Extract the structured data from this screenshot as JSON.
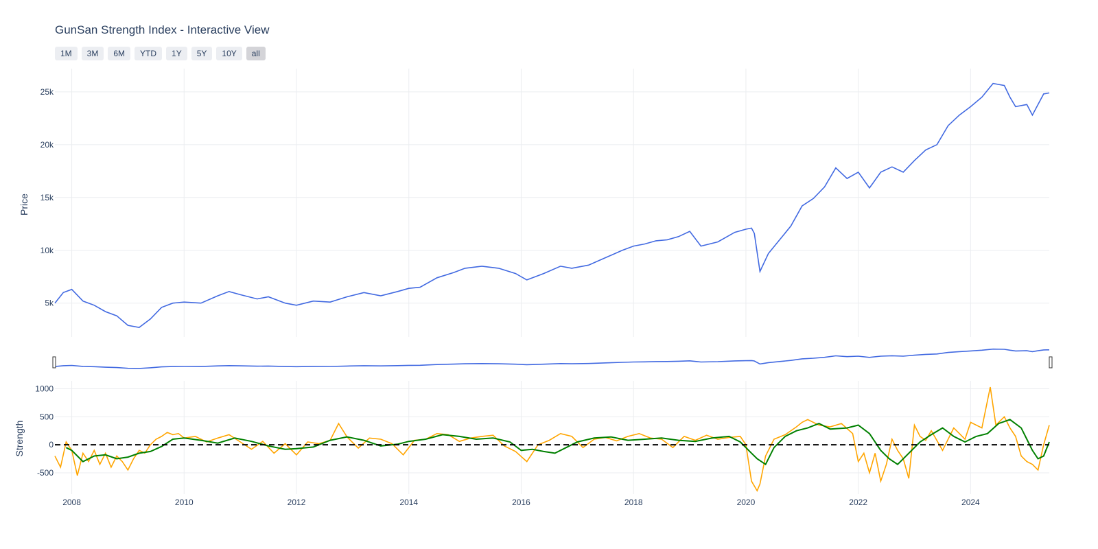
{
  "title": "GunSan Strength Index - Interactive View",
  "range_selector": {
    "buttons": [
      {
        "label": "1M",
        "active": false
      },
      {
        "label": "3M",
        "active": false
      },
      {
        "label": "6M",
        "active": false
      },
      {
        "label": "YTD",
        "active": false
      },
      {
        "label": "1Y",
        "active": false
      },
      {
        "label": "5Y",
        "active": false
      },
      {
        "label": "10Y",
        "active": false
      },
      {
        "label": "all",
        "active": true
      }
    ]
  },
  "colors": {
    "price": "#4169e1",
    "strength": "#ffa500",
    "strength_smooth": "#008000",
    "zero_line": "#000000",
    "grid": "#ebedf0",
    "text": "#2a3f5f"
  },
  "chart_data": [
    {
      "type": "line",
      "panel": "price",
      "ylabel": "Price",
      "ylim": [
        1800,
        27200
      ],
      "xlim": [
        2007.7,
        2025.4
      ],
      "y_ticks": [
        {
          "value": 5000,
          "label": "5k"
        },
        {
          "value": 10000,
          "label": "10k"
        },
        {
          "value": 15000,
          "label": "15k"
        },
        {
          "value": 20000,
          "label": "20k"
        },
        {
          "value": 25000,
          "label": "25k"
        }
      ],
      "x_ticks": [
        {
          "value": 2008,
          "label": "2008"
        },
        {
          "value": 2010,
          "label": "2010"
        },
        {
          "value": 2012,
          "label": "2012"
        },
        {
          "value": 2014,
          "label": "2014"
        },
        {
          "value": 2016,
          "label": "2016"
        },
        {
          "value": 2018,
          "label": "2018"
        },
        {
          "value": 2020,
          "label": "2020"
        },
        {
          "value": 2022,
          "label": "2022"
        },
        {
          "value": 2024,
          "label": "2024"
        }
      ],
      "grid": true,
      "series": [
        {
          "x": [
            2007.7,
            2007.85,
            2008.0,
            2008.2,
            2008.4,
            2008.6,
            2008.8,
            2009.0,
            2009.2,
            2009.4,
            2009.6,
            2009.8,
            2010.0,
            2010.3,
            2010.6,
            2010.8,
            2011.0,
            2011.3,
            2011.5,
            2011.8,
            2012.0,
            2012.3,
            2012.6,
            2012.9,
            2013.2,
            2013.5,
            2013.8,
            2014.0,
            2014.2,
            2014.5,
            2014.8,
            2015.0,
            2015.3,
            2015.6,
            2015.9,
            2016.1,
            2016.4,
            2016.7,
            2016.9,
            2017.2,
            2017.5,
            2017.8,
            2018.0,
            2018.2,
            2018.4,
            2018.6,
            2018.8,
            2019.0,
            2019.2,
            2019.5,
            2019.8,
            2020.0,
            2020.1,
            2020.15,
            2020.25,
            2020.4,
            2020.6,
            2020.8,
            2021.0,
            2021.2,
            2021.4,
            2021.6,
            2021.8,
            2022.0,
            2022.2,
            2022.4,
            2022.6,
            2022.8,
            2023.0,
            2023.2,
            2023.4,
            2023.6,
            2023.8,
            2024.0,
            2024.2,
            2024.4,
            2024.6,
            2024.7,
            2024.8,
            2025.0,
            2025.1,
            2025.2,
            2025.3,
            2025.4
          ],
          "y": [
            5000,
            6000,
            6300,
            5200,
            4800,
            4200,
            3800,
            2900,
            2700,
            3500,
            4600,
            5000,
            5100,
            5000,
            5700,
            6100,
            5800,
            5400,
            5600,
            5000,
            4800,
            5200,
            5100,
            5600,
            6000,
            5700,
            6100,
            6400,
            6500,
            7400,
            7900,
            8300,
            8500,
            8300,
            7800,
            7200,
            7800,
            8500,
            8300,
            8600,
            9300,
            10000,
            10400,
            10600,
            10900,
            11000,
            11300,
            11800,
            10400,
            10800,
            11700,
            12000,
            12100,
            11600,
            8000,
            9700,
            11000,
            12300,
            14200,
            14900,
            16000,
            17800,
            16800,
            17400,
            15900,
            17400,
            17900,
            17400,
            18500,
            19500,
            20000,
            21800,
            22800,
            23600,
            24500,
            25800,
            25600,
            24500,
            23600,
            23800,
            22800,
            23800,
            24800,
            24900
          ],
          "name": ""
        }
      ]
    },
    {
      "type": "line",
      "panel": "range_slider",
      "xlim": [
        2007.7,
        2025.4
      ],
      "series": [
        {
          "ref": "price"
        }
      ]
    },
    {
      "type": "line",
      "panel": "strength",
      "ylabel": "Strength",
      "ylim": [
        -880,
        1140
      ],
      "xlim": [
        2007.7,
        2025.4
      ],
      "y_ticks": [
        {
          "value": -500,
          "label": "-500"
        },
        {
          "value": 0,
          "label": "0"
        },
        {
          "value": 500,
          "label": "500"
        },
        {
          "value": 1000,
          "label": "1000"
        }
      ],
      "x_ticks": [
        {
          "value": 2008,
          "label": "2008"
        },
        {
          "value": 2010,
          "label": "2010"
        },
        {
          "value": 2012,
          "label": "2012"
        },
        {
          "value": 2014,
          "label": "2014"
        },
        {
          "value": 2016,
          "label": "2016"
        },
        {
          "value": 2018,
          "label": "2018"
        },
        {
          "value": 2020,
          "label": "2020"
        },
        {
          "value": 2022,
          "label": "2022"
        },
        {
          "value": 2024,
          "label": "2024"
        }
      ],
      "grid": true,
      "reference_line": {
        "y": 0,
        "style": "dashed"
      },
      "series": [
        {
          "name": "",
          "color_key": "strength",
          "x": [
            2007.7,
            2007.8,
            2007.9,
            2008.0,
            2008.1,
            2008.2,
            2008.3,
            2008.4,
            2008.5,
            2008.6,
            2008.7,
            2008.8,
            2008.9,
            2009.0,
            2009.1,
            2009.2,
            2009.3,
            2009.4,
            2009.5,
            2009.6,
            2009.7,
            2009.8,
            2009.9,
            2010.0,
            2010.2,
            2010.4,
            2010.6,
            2010.8,
            2011.0,
            2011.2,
            2011.4,
            2011.6,
            2011.8,
            2012.0,
            2012.2,
            2012.4,
            2012.6,
            2012.75,
            2012.9,
            2013.1,
            2013.3,
            2013.5,
            2013.7,
            2013.9,
            2014.1,
            2014.3,
            2014.5,
            2014.7,
            2014.9,
            2015.1,
            2015.3,
            2015.5,
            2015.7,
            2015.9,
            2016.1,
            2016.3,
            2016.5,
            2016.7,
            2016.9,
            2017.1,
            2017.3,
            2017.5,
            2017.7,
            2017.9,
            2018.1,
            2018.3,
            2018.5,
            2018.7,
            2018.9,
            2019.1,
            2019.3,
            2019.5,
            2019.7,
            2019.9,
            2020.0,
            2020.1,
            2020.2,
            2020.25,
            2020.35,
            2020.5,
            2020.7,
            2020.9,
            2021.0,
            2021.1,
            2021.3,
            2021.5,
            2021.7,
            2021.9,
            2022.0,
            2022.1,
            2022.2,
            2022.3,
            2022.4,
            2022.5,
            2022.6,
            2022.7,
            2022.8,
            2022.9,
            2023.0,
            2023.1,
            2023.2,
            2023.3,
            2023.5,
            2023.7,
            2023.9,
            2024.0,
            2024.2,
            2024.35,
            2024.45,
            2024.5,
            2024.6,
            2024.7,
            2024.8,
            2024.9,
            2025.0,
            2025.1,
            2025.2,
            2025.3,
            2025.4
          ],
          "y": [
            -200,
            -400,
            50,
            -100,
            -550,
            -150,
            -300,
            -100,
            -350,
            -150,
            -400,
            -200,
            -300,
            -450,
            -250,
            -100,
            -150,
            0,
            100,
            150,
            220,
            180,
            200,
            120,
            150,
            50,
            120,
            180,
            50,
            -80,
            60,
            -150,
            20,
            -180,
            50,
            20,
            80,
            380,
            140,
            -60,
            120,
            100,
            20,
            -180,
            80,
            100,
            200,
            180,
            60,
            120,
            150,
            170,
            -20,
            -120,
            -300,
            0,
            80,
            200,
            150,
            -50,
            100,
            130,
            70,
            150,
            200,
            120,
            100,
            -50,
            150,
            80,
            170,
            100,
            130,
            150,
            0,
            -650,
            -820,
            -700,
            -200,
            100,
            180,
            320,
            400,
            450,
            350,
            320,
            380,
            200,
            -300,
            -150,
            -500,
            -150,
            -650,
            -350,
            100,
            -100,
            -250,
            -600,
            350,
            150,
            80,
            250,
            -100,
            300,
            100,
            400,
            300,
            1030,
            350,
            400,
            500,
            300,
            150,
            -200,
            -300,
            -350,
            -450,
            0,
            350
          ]
        },
        {
          "name": "",
          "color_key": "strength_smooth",
          "x": [
            2007.9,
            2008.0,
            2008.2,
            2008.4,
            2008.6,
            2008.8,
            2009.0,
            2009.2,
            2009.4,
            2009.6,
            2009.8,
            2010.0,
            2010.3,
            2010.6,
            2010.9,
            2011.2,
            2011.5,
            2011.8,
            2012.0,
            2012.3,
            2012.6,
            2012.9,
            2013.2,
            2013.5,
            2013.8,
            2014.0,
            2014.3,
            2014.6,
            2014.9,
            2015.2,
            2015.5,
            2015.8,
            2016.0,
            2016.2,
            2016.4,
            2016.6,
            2016.8,
            2017.0,
            2017.3,
            2017.6,
            2017.9,
            2018.2,
            2018.5,
            2018.8,
            2019.1,
            2019.4,
            2019.7,
            2019.9,
            2020.1,
            2020.2,
            2020.35,
            2020.5,
            2020.7,
            2020.9,
            2021.1,
            2021.3,
            2021.5,
            2021.8,
            2022.0,
            2022.2,
            2022.4,
            2022.55,
            2022.7,
            2022.9,
            2023.1,
            2023.3,
            2023.5,
            2023.7,
            2023.9,
            2024.1,
            2024.3,
            2024.5,
            2024.7,
            2024.9,
            2025.0,
            2025.1,
            2025.2,
            2025.3,
            2025.4
          ],
          "y": [
            -50,
            -100,
            -300,
            -200,
            -180,
            -250,
            -220,
            -150,
            -120,
            -30,
            100,
            120,
            80,
            30,
            120,
            60,
            -20,
            -80,
            -70,
            -40,
            80,
            140,
            80,
            -20,
            10,
            60,
            100,
            180,
            150,
            100,
            120,
            50,
            -100,
            -80,
            -120,
            -150,
            -50,
            50,
            120,
            140,
            80,
            100,
            120,
            80,
            60,
            120,
            150,
            50,
            -150,
            -250,
            -350,
            -50,
            150,
            250,
            300,
            380,
            280,
            300,
            350,
            200,
            -100,
            -250,
            -350,
            -150,
            50,
            180,
            300,
            150,
            50,
            150,
            200,
            380,
            450,
            300,
            100,
            -100,
            -250,
            -200,
            50
          ]
        }
      ]
    }
  ]
}
